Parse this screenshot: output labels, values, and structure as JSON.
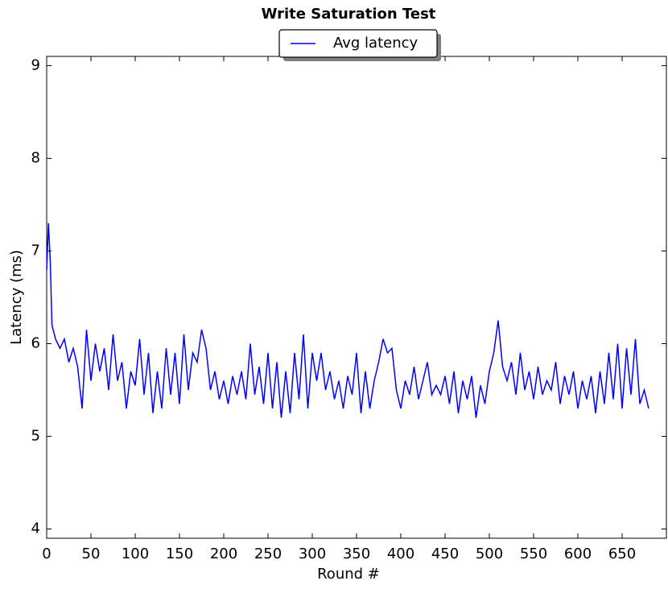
{
  "chart_data": {
    "type": "line",
    "title": "Write Saturation Test",
    "xlabel": "Round #",
    "ylabel": "Latency (ms)",
    "legend": "upper center",
    "x": [
      0,
      2,
      4,
      6,
      10,
      15,
      20,
      25,
      30,
      35,
      40,
      45,
      50,
      55,
      60,
      65,
      70,
      75,
      80,
      85,
      90,
      95,
      100,
      105,
      110,
      115,
      120,
      125,
      130,
      135,
      140,
      145,
      150,
      155,
      160,
      165,
      170,
      175,
      180,
      185,
      190,
      195,
      200,
      205,
      210,
      215,
      220,
      225,
      230,
      235,
      240,
      245,
      250,
      255,
      260,
      265,
      270,
      275,
      280,
      285,
      290,
      295,
      300,
      305,
      310,
      315,
      320,
      325,
      330,
      335,
      340,
      345,
      350,
      355,
      360,
      365,
      370,
      375,
      380,
      385,
      390,
      395,
      400,
      405,
      410,
      415,
      420,
      425,
      430,
      435,
      440,
      445,
      450,
      455,
      460,
      465,
      470,
      475,
      480,
      485,
      490,
      495,
      500,
      505,
      510,
      515,
      520,
      525,
      530,
      535,
      540,
      545,
      550,
      555,
      560,
      565,
      570,
      575,
      580,
      585,
      590,
      595,
      600,
      605,
      610,
      615,
      620,
      625,
      630,
      635,
      640,
      645,
      650,
      655,
      660,
      665,
      670,
      675,
      680
    ],
    "series": [
      {
        "name": "Avg latency",
        "color": "#0000ff",
        "values": [
          6.8,
          7.3,
          6.9,
          6.2,
          6.05,
          5.95,
          6.05,
          5.8,
          5.95,
          5.75,
          5.3,
          6.15,
          5.6,
          6.0,
          5.7,
          5.95,
          5.5,
          6.1,
          5.6,
          5.8,
          5.3,
          5.7,
          5.55,
          6.05,
          5.45,
          5.9,
          5.25,
          5.7,
          5.3,
          5.95,
          5.45,
          5.9,
          5.35,
          6.1,
          5.5,
          5.9,
          5.8,
          6.15,
          5.95,
          5.5,
          5.7,
          5.4,
          5.6,
          5.35,
          5.65,
          5.45,
          5.7,
          5.4,
          6.0,
          5.45,
          5.75,
          5.35,
          5.9,
          5.3,
          5.8,
          5.2,
          5.7,
          5.25,
          5.9,
          5.4,
          6.1,
          5.3,
          5.9,
          5.6,
          5.9,
          5.5,
          5.7,
          5.4,
          5.6,
          5.3,
          5.65,
          5.45,
          5.9,
          5.25,
          5.7,
          5.3,
          5.6,
          5.8,
          6.05,
          5.9,
          5.95,
          5.5,
          5.3,
          5.6,
          5.45,
          5.75,
          5.4,
          5.6,
          5.8,
          5.45,
          5.55,
          5.45,
          5.65,
          5.35,
          5.7,
          5.25,
          5.6,
          5.4,
          5.65,
          5.2,
          5.55,
          5.35,
          5.7,
          5.9,
          6.25,
          5.75,
          5.6,
          5.8,
          5.45,
          5.9,
          5.5,
          5.7,
          5.4,
          5.75,
          5.45,
          5.6,
          5.5,
          5.8,
          5.35,
          5.65,
          5.45,
          5.7,
          5.3,
          5.6,
          5.4,
          5.65,
          5.25,
          5.7,
          5.35,
          5.9,
          5.4,
          6.0,
          5.3,
          5.95,
          5.45,
          6.05,
          5.35,
          5.5,
          5.3
        ]
      }
    ],
    "xlim": [
      0,
      700
    ],
    "xticks": [
      0,
      50,
      100,
      150,
      200,
      250,
      300,
      350,
      400,
      450,
      500,
      550,
      600,
      650
    ],
    "ylim": [
      3.9,
      9.1
    ],
    "yticks": [
      4,
      5,
      6,
      7,
      8,
      9
    ]
  }
}
